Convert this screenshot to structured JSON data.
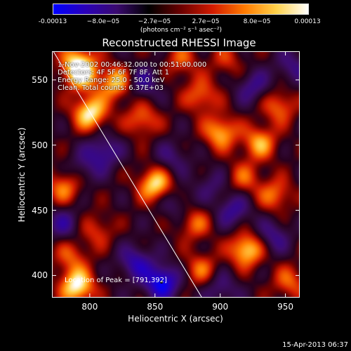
{
  "colorbar": {
    "ticks": [
      "-0.00013",
      "−8.0e−05",
      "−2.7e−05",
      "2.7e−05",
      "8.0e−05",
      "0.00013"
    ],
    "unit": "(photons cm⁻² s⁻¹ asec⁻²)",
    "gradient": [
      "#0000ff",
      "#2a00b8",
      "#3a0a6e",
      "#000000",
      "#6a0000",
      "#d21b00",
      "#ff7a00",
      "#ffd24a",
      "#ffffff"
    ]
  },
  "annotations": {
    "time_range": "1-Nov-2002 00:46:32.000 to 00:51:00.000",
    "detectors": "Detectors: 4F 5F 6F 7F 8F, Att 1",
    "energy": "Energy Range: 25.0 - 50.0 keV",
    "clean": "Clean.    Total counts: 6.37E+03",
    "peak": "Location of Peak = [791,392]"
  },
  "footer": {
    "timestamp": "15-Apr-2013 06:37"
  },
  "chart_data": {
    "type": "heatmap",
    "title": "Reconstructed RHESSI Image",
    "xlabel": "Heliocentric X (arcsec)",
    "ylabel": "Heliocentric Y (arcsec)",
    "xlim": [
      771,
      961
    ],
    "ylim": [
      383,
      572
    ],
    "x_ticks": [
      800,
      850,
      900,
      950
    ],
    "y_ticks": [
      400,
      450,
      500,
      550
    ],
    "colorbar_range": [
      -0.00013,
      0.00013
    ],
    "peak_location": [
      791,
      392
    ],
    "limb_line": [
      [
        772,
        572
      ],
      [
        886,
        383
      ]
    ],
    "sources": [
      {
        "x": 790,
        "y": 392,
        "intensity": 1.0
      },
      {
        "x": 800,
        "y": 525,
        "intensity": 0.95
      },
      {
        "x": 793,
        "y": 555,
        "intensity": 0.85
      },
      {
        "x": 790,
        "y": 565,
        "intensity": 0.6
      },
      {
        "x": 820,
        "y": 548,
        "intensity": 0.8
      },
      {
        "x": 850,
        "y": 470,
        "intensity": 0.9
      },
      {
        "x": 840,
        "y": 520,
        "intensity": 0.55
      },
      {
        "x": 885,
        "y": 538,
        "intensity": 0.55
      },
      {
        "x": 900,
        "y": 510,
        "intensity": 0.75
      },
      {
        "x": 930,
        "y": 502,
        "intensity": 0.7
      },
      {
        "x": 945,
        "y": 530,
        "intensity": 0.55
      },
      {
        "x": 918,
        "y": 475,
        "intensity": 0.45
      },
      {
        "x": 942,
        "y": 462,
        "intensity": 0.55
      },
      {
        "x": 920,
        "y": 420,
        "intensity": 0.9
      },
      {
        "x": 953,
        "y": 395,
        "intensity": 0.5
      },
      {
        "x": 780,
        "y": 468,
        "intensity": 0.6
      },
      {
        "x": 880,
        "y": 440,
        "intensity": 0.5
      },
      {
        "x": 805,
        "y": 435,
        "intensity": 0.4
      },
      {
        "x": 785,
        "y": 415,
        "intensity": 0.45
      },
      {
        "x": 885,
        "y": 405,
        "intensity": 0.5
      },
      {
        "x": 870,
        "y": 565,
        "intensity": 0.45
      },
      {
        "x": 905,
        "y": 565,
        "intensity": 0.35
      },
      {
        "x": 855,
        "y": 395,
        "intensity": -0.95
      },
      {
        "x": 835,
        "y": 410,
        "intensity": -0.6
      },
      {
        "x": 810,
        "y": 495,
        "intensity": -0.55
      },
      {
        "x": 840,
        "y": 548,
        "intensity": -0.5
      },
      {
        "x": 910,
        "y": 450,
        "intensity": -0.5
      },
      {
        "x": 940,
        "y": 430,
        "intensity": -0.45
      },
      {
        "x": 900,
        "y": 390,
        "intensity": -0.4
      },
      {
        "x": 863,
        "y": 490,
        "intensity": -0.35
      },
      {
        "x": 955,
        "y": 560,
        "intensity": -0.4
      },
      {
        "x": 925,
        "y": 545,
        "intensity": -0.45
      },
      {
        "x": 865,
        "y": 455,
        "intensity": -0.3
      },
      {
        "x": 780,
        "y": 440,
        "intensity": -0.45
      },
      {
        "x": 795,
        "y": 482,
        "intensity": -0.3
      },
      {
        "x": 893,
        "y": 470,
        "intensity": -0.3
      }
    ]
  }
}
